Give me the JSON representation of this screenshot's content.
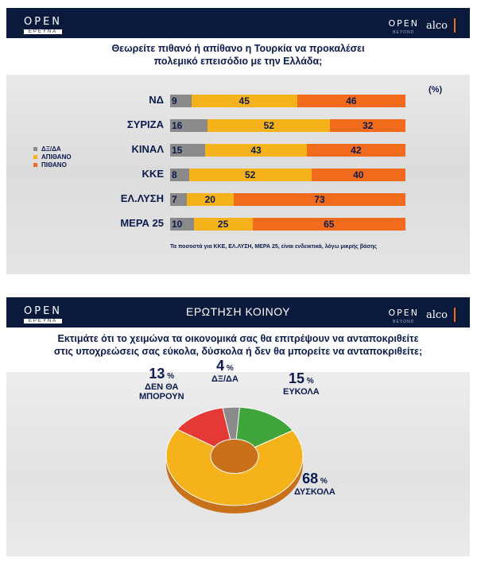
{
  "colors": {
    "dk": "#8a8a8a",
    "unlikely": "#f5b21b",
    "likely": "#f26b1d",
    "navy": "#0b1b4d",
    "green": "#3fa43a",
    "red": "#e53935"
  },
  "logos": {
    "open_main": "OPEN",
    "open_sub": "ΕΡΕΥΝΑ",
    "open_right": "OPEN",
    "open_right_sub": "BEYOND",
    "alco": "alco"
  },
  "panel2_header": "ΕΡΩΤΗΣΗ ΚΟΙΝΟΥ",
  "chart_data": [
    {
      "type": "bar",
      "stacked": true,
      "orientation": "horizontal",
      "title": "Θεωρείτε πιθανό ή απίθανο η Τουρκία να προκαλέσει πολεμικό επεισόδιο με την Ελλάδα;",
      "title_lines": [
        "Θεωρείτε πιθανό ή απίθανο η Τουρκία να προκαλέσει",
        "πολεμικό επεισόδιο με την Ελλάδα;"
      ],
      "unit_label": "(%)",
      "categories": [
        "ΝΔ",
        "ΣΥΡΙΖΑ",
        "ΚΙΝΑΛ",
        "ΚΚΕ",
        "ΕΛ.ΛΥΣΗ",
        "ΜΕΡΑ 25"
      ],
      "series": [
        {
          "name": "ΔΞ/ΔΑ",
          "values": [
            9,
            16,
            15,
            8,
            7,
            10
          ]
        },
        {
          "name": "ΑΠΙΘΑΝΟ",
          "values": [
            45,
            52,
            43,
            52,
            20,
            25
          ]
        },
        {
          "name": "ΠΙΘΑΝΟ",
          "values": [
            46,
            32,
            42,
            40,
            73,
            65
          ]
        }
      ],
      "xlim": [
        0,
        100
      ],
      "legend": "left",
      "footnote": "Τα ποσοστά για ΚΚΕ, ΕΛ.ΛΥΣΗ, ΜΕΡΑ 25, είναι ενδεικτικά, λόγω μικρής βάσης"
    },
    {
      "type": "pie",
      "donut": true,
      "title": "Εκτιμάτε ότι το χειμώνα τα οικονομικά σας θα επιτρέψουν να ανταποκριθείτε στις υποχρεώσεις σας εύκολα, δύσκολα ή δεν θα μπορείτε να ανταποκριθείτε;",
      "title_lines": [
        "Εκτιμάτε ότι το χειμώνα τα οικονομικά σας θα επιτρέψουν  να ανταποκριθείτε",
        "στις υποχρεώσεις σας εύκολα, δύσκολα ή δεν θα μπορείτε να ανταποκριθείτε;"
      ],
      "slices": [
        {
          "label": "ΔΞ/ΔΑ",
          "value": 4,
          "label_lines": [
            "ΔΞ/ΔΑ"
          ]
        },
        {
          "label": "ΕΥΚΟΛΑ",
          "value": 15,
          "label_lines": [
            "ΕΥΚΟΛΑ"
          ]
        },
        {
          "label": "ΔΥΣΚΟΛΑ",
          "value": 68,
          "label_lines": [
            "ΔΥΣΚΟΛΑ"
          ]
        },
        {
          "label": "ΔΕΝ ΘΑ ΜΠΟΡΟΥΝ",
          "value": 13,
          "label_lines": [
            "ΔΕΝ ΘΑ",
            "ΜΠΟΡΟΥΝ"
          ]
        }
      ],
      "percent_symbol": "%"
    }
  ]
}
